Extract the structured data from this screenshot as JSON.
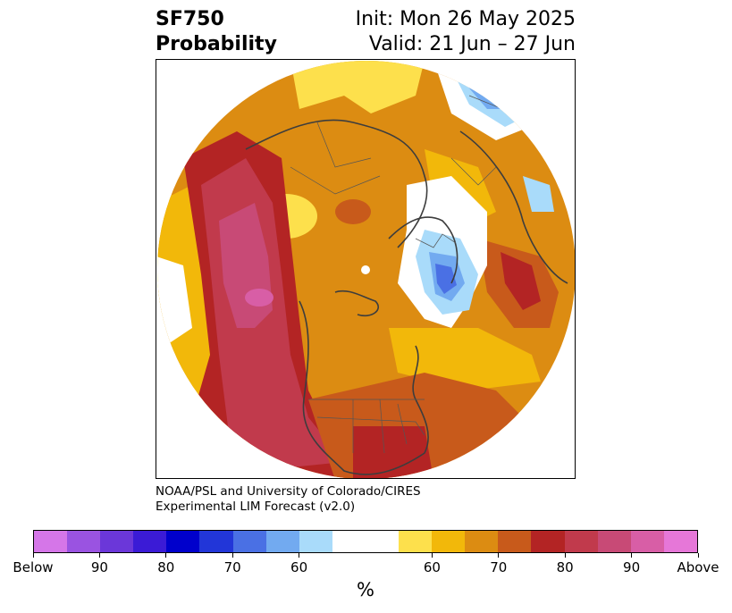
{
  "title": {
    "left_line1": "SF750",
    "left_line2": "Probability",
    "right_line1": "Init: Mon 26 May 2025",
    "right_line2": "Valid: 21 Jun – 27 Jun"
  },
  "credit": {
    "line1": "NOAA/PSL and University of Colorado/CIRES",
    "line2": "Experimental LIM Forecast (v2.0)"
  },
  "colorbar": {
    "colors": [
      "#d576e8",
      "#9a53e1",
      "#6b37d9",
      "#3b1bd6",
      "#0000cc",
      "#2236d8",
      "#4a70e4",
      "#72aaf0",
      "#a9dbfa",
      "#ffffff",
      "#ffffff",
      "#fde04c",
      "#f2b80a",
      "#dc8c12",
      "#c85a1b",
      "#b32424",
      "#c13a4c",
      "#c84a76",
      "#d85ea6",
      "#e677d8"
    ],
    "tick_labels": [
      "Below",
      "90",
      "80",
      "70",
      "60",
      "60",
      "70",
      "80",
      "90",
      "Above"
    ],
    "unit": "%"
  },
  "map": {
    "projection": "north-polar-stereographic",
    "features": [
      "continents",
      "country-borders",
      "us-state-borders"
    ]
  }
}
